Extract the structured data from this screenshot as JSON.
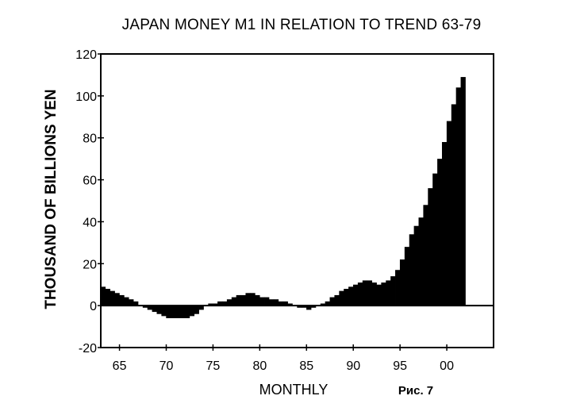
{
  "chart_data": {
    "type": "bar",
    "title": "JAPAN MONEY M1 IN RELATION TO TREND 63-79",
    "xlabel": "MONTHLY",
    "ylabel": "THOUSAND OF BILLIONS YEN",
    "caption": "Рис. 7",
    "ylim": [
      -20,
      120
    ],
    "xlim": [
      1963,
      2005
    ],
    "yticks": [
      "120",
      "100",
      "80",
      "60",
      "40",
      "20",
      "0",
      "-20"
    ],
    "xticks": [
      "65",
      "70",
      "75",
      "80",
      "85",
      "90",
      "95",
      "00"
    ],
    "grid": false,
    "series": [
      {
        "x": [
          1963.0,
          1963.5,
          1964.0,
          1964.5,
          1965.0,
          1965.5,
          1966.0,
          1966.5,
          1967.0,
          1967.5,
          1968.0,
          1968.5,
          1969.0,
          1969.5,
          1970.0,
          1970.5,
          1971.0,
          1971.5,
          1972.0,
          1972.5,
          1973.0,
          1973.5,
          1974.0,
          1974.5,
          1975.0,
          1975.5,
          1976.0,
          1976.5,
          1977.0,
          1977.5,
          1978.0,
          1978.5,
          1979.0,
          1979.5,
          1980.0,
          1980.5,
          1981.0,
          1981.5,
          1982.0,
          1982.5,
          1983.0,
          1983.5,
          1984.0,
          1984.5,
          1985.0,
          1985.5,
          1986.0,
          1986.5,
          1987.0,
          1987.5,
          1988.0,
          1988.5,
          1989.0,
          1989.5,
          1990.0,
          1990.5,
          1991.0,
          1991.5,
          1992.0,
          1992.5,
          1993.0,
          1993.5,
          1994.0,
          1994.5,
          1995.0,
          1995.5,
          1996.0,
          1996.5,
          1997.0,
          1997.5,
          1998.0,
          1998.5,
          1999.0,
          1999.5,
          2000.0,
          2000.5,
          2001.0,
          2001.5
        ],
        "values": [
          9,
          8,
          7,
          6,
          5,
          4,
          3,
          2,
          0,
          -1,
          -2,
          -3,
          -4,
          -5,
          -6,
          -6,
          -6,
          -6,
          -6,
          -5,
          -4,
          -2,
          0,
          1,
          1,
          2,
          2,
          3,
          4,
          5,
          5,
          6,
          6,
          5,
          4,
          4,
          3,
          3,
          2,
          2,
          1,
          0,
          -1,
          -1,
          -2,
          -1,
          0,
          1,
          2,
          4,
          5,
          7,
          8,
          9,
          10,
          11,
          12,
          12,
          11,
          10,
          11,
          12,
          14,
          17,
          22,
          28,
          34,
          38,
          42,
          48,
          56,
          63,
          70,
          78,
          88,
          96,
          104,
          109
        ]
      }
    ]
  }
}
